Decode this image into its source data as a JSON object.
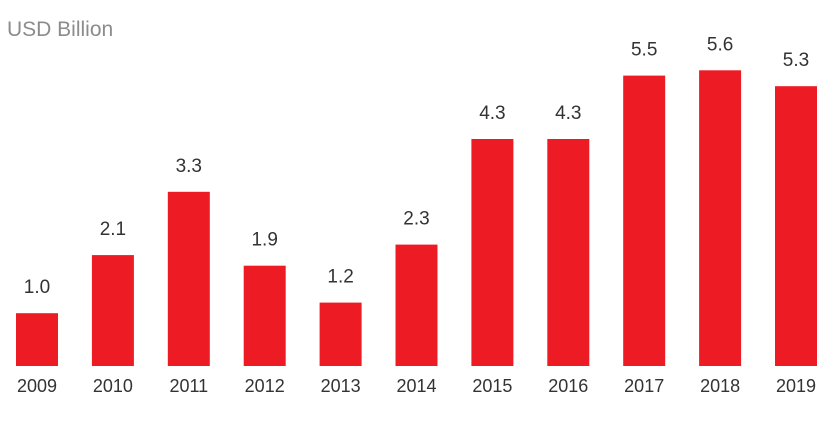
{
  "chart_data": {
    "type": "bar",
    "unit_label": "USD Billion",
    "title": "",
    "xlabel": "",
    "ylabel": "USD Billion",
    "categories": [
      "2009",
      "2010",
      "2011",
      "2012",
      "2013",
      "2014",
      "2015",
      "2016",
      "2017",
      "2018",
      "2019"
    ],
    "values": [
      1.0,
      2.1,
      3.3,
      1.9,
      1.2,
      2.3,
      4.3,
      4.3,
      5.5,
      5.6,
      5.3
    ],
    "value_labels": [
      "1.0",
      "2.1",
      "3.3",
      "1.9",
      "1.2",
      "2.3",
      "4.3",
      "4.3",
      "5.5",
      "5.6",
      "5.3"
    ],
    "ylim": [
      0,
      6.2
    ],
    "grid": false,
    "legend": "none",
    "bar_color": "#ed1c24",
    "text_color": "#333333",
    "unit_color": "#8c8c8c"
  }
}
